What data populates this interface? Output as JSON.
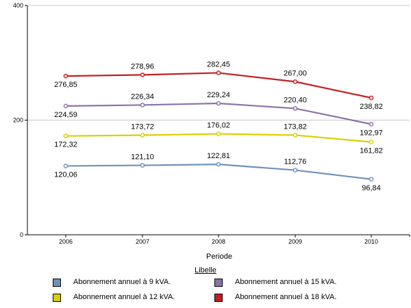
{
  "chart_data": {
    "type": "line",
    "x": [
      "2006",
      "2007",
      "2008",
      "2009",
      "2010"
    ],
    "xlabel": "Periode",
    "ylim": [
      0,
      400
    ],
    "yticks": [
      "0",
      "200",
      "400"
    ],
    "grid": {
      "horizontal": true,
      "vertical": false
    },
    "legend_title": "Libelle",
    "legend_position": "bottom",
    "series": [
      {
        "name": "Abonnement annuel à 9 kVA.",
        "color": "#6f91b9",
        "values": [
          120.06,
          121.1,
          122.81,
          112.76,
          96.84
        ],
        "labels": [
          "120,06",
          "121,10",
          "122,81",
          "112,76",
          "96,84"
        ]
      },
      {
        "name": "Abonnement annuel à 12 kVA.",
        "color": "#d9d000",
        "values": [
          172.32,
          173.72,
          176.02,
          173.82,
          161.82
        ],
        "labels": [
          "172,32",
          "173,72",
          "176,02",
          "173,82",
          "161,82"
        ]
      },
      {
        "name": "Abonnement annuel à 15 kVA.",
        "color": "#8c72a8",
        "values": [
          224.59,
          226.34,
          229.24,
          220.4,
          192.97
        ],
        "labels": [
          "224,59",
          "226,34",
          "229,24",
          "220,40",
          "192,97"
        ]
      },
      {
        "name": "Abonnement annuel à 18 kVA.",
        "color": "#c41e22",
        "values": [
          276.85,
          278.96,
          282.45,
          267.0,
          238.82
        ],
        "labels": [
          "276,85",
          "278,96",
          "282,45",
          "267,00",
          "238,82"
        ]
      }
    ]
  }
}
